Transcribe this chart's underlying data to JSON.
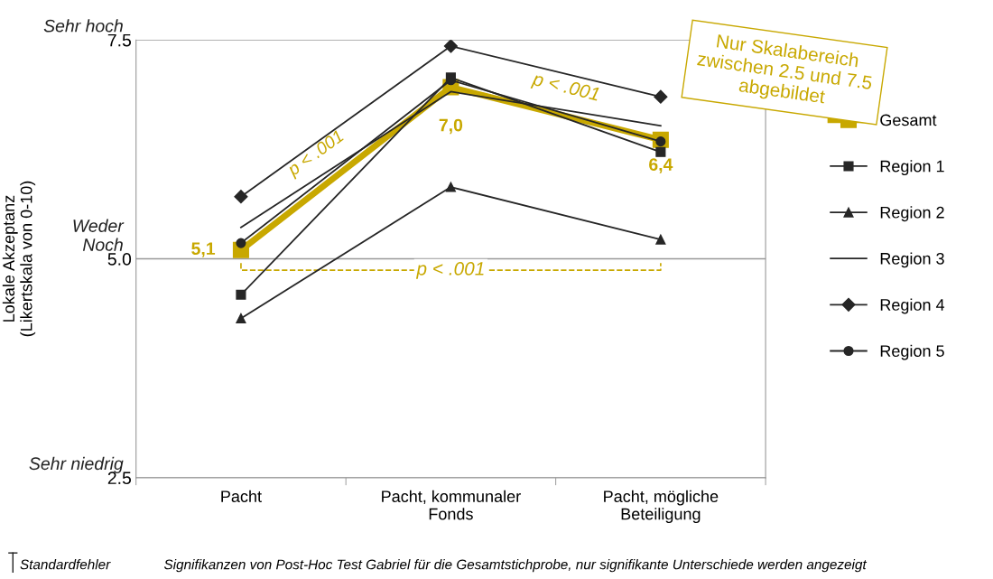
{
  "chart_data": {
    "type": "line",
    "ylabel": "Lokale Akzeptanz\n(Likertskala von 0-10)",
    "categories": [
      "Pacht",
      "Pacht, kommunaler\nFonds",
      "Pacht, mögliche\nBeteiligung"
    ],
    "ylim": [
      2.5,
      7.5
    ],
    "yticks": [
      {
        "value": 2.5,
        "label": "2.5"
      },
      {
        "value": 5.0,
        "label": "5.0"
      },
      {
        "value": 7.5,
        "label": "7.5"
      }
    ],
    "grid": "y",
    "legend": "right",
    "line_style": "solid",
    "series": [
      {
        "name": "Gesamt",
        "color": "#c8a800",
        "marker": "square",
        "values": [
          5.1,
          6.96,
          6.36
        ],
        "value_labels": [
          "5,1",
          "7,0",
          "6,4"
        ]
      },
      {
        "name": "Region 1",
        "color": "#262626",
        "marker": "square",
        "values": [
          4.59,
          7.07,
          6.22
        ]
      },
      {
        "name": "Region 2",
        "color": "#262626",
        "marker": "triangle",
        "values": [
          4.32,
          5.82,
          5.22
        ]
      },
      {
        "name": "Region 3",
        "color": "#262626",
        "marker": "none",
        "values": [
          5.36,
          6.91,
          6.52
        ]
      },
      {
        "name": "Region 4",
        "color": "#262626",
        "marker": "diamond",
        "values": [
          5.71,
          7.43,
          6.85
        ]
      },
      {
        "name": "Region 5",
        "color": "#262626",
        "marker": "circle",
        "values": [
          5.18,
          7.04,
          6.34
        ]
      }
    ],
    "annotations": [
      "Sehr hoch",
      "Weder\nNoch",
      "Sehr niedrig",
      "p < .001",
      "p < .001",
      "p < .001",
      "Nur Skalabereich\nzwischen 2.5 und 7.5\nabgebildet",
      "Standardfehler",
      "Signifikanzen von Post-Hoc Test Gabriel für die Gesamtstichprobe, nur signifikante Unterschiede werden angezeigt"
    ]
  }
}
